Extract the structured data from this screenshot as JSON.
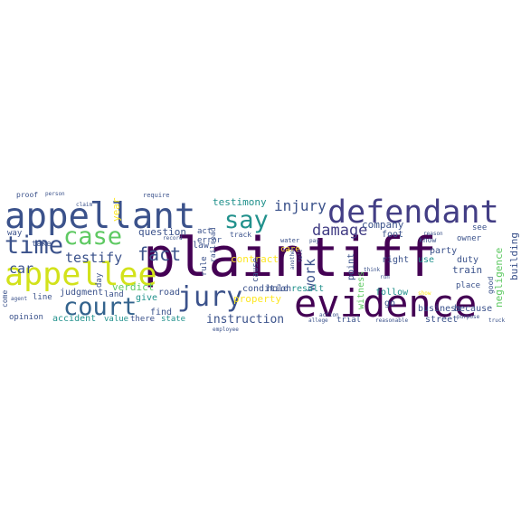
{
  "words": [
    {
      "text": "plaintiff",
      "color": "#440154"
    },
    {
      "text": "evidence",
      "color": "#440154"
    },
    {
      "text": "appellant",
      "color": "#3b528b"
    },
    {
      "text": "defendant",
      "color": "#433e85"
    },
    {
      "text": "appellee",
      "color": "#d2e21b"
    },
    {
      "text": "court",
      "color": "#33638d"
    },
    {
      "text": "jury",
      "color": "#3b528b"
    },
    {
      "text": "case",
      "color": "#5ec962"
    },
    {
      "text": "time",
      "color": "#3b528b"
    },
    {
      "text": "say",
      "color": "#21918c"
    },
    {
      "text": "injury",
      "color": "#3b528b"
    },
    {
      "text": "damage",
      "color": "#433e85"
    },
    {
      "text": "fact",
      "color": "#3b528b"
    },
    {
      "text": "testify",
      "color": "#3b528b"
    },
    {
      "text": "instruction",
      "color": "#3b528b"
    },
    {
      "text": "testimony",
      "color": "#21918c"
    },
    {
      "text": "question",
      "color": "#3b528b"
    },
    {
      "text": "car",
      "color": "#3b528b"
    },
    {
      "text": "work",
      "color": "#3b528b"
    },
    {
      "text": "company",
      "color": "#3b528b"
    },
    {
      "text": "negligence",
      "color": "#5ec962"
    },
    {
      "text": "building",
      "color": "#3b528b"
    },
    {
      "text": "contract",
      "color": "#fde725"
    },
    {
      "text": "property",
      "color": "#fde725"
    },
    {
      "text": "business",
      "color": "#3b528b"
    },
    {
      "text": "because",
      "color": "#3b528b"
    },
    {
      "text": "street",
      "color": "#3b528b"
    },
    {
      "text": "trial",
      "color": "#3b528b"
    },
    {
      "text": "accident",
      "color": "#21918c"
    },
    {
      "text": "judgment",
      "color": "#3b528b"
    },
    {
      "text": "opinion",
      "color": "#3b528b"
    },
    {
      "text": "verdict",
      "color": "#5ec962"
    },
    {
      "text": "condition",
      "color": "#3b528b"
    },
    {
      "text": "result",
      "color": "#21918c"
    },
    {
      "text": "witness",
      "color": "#5ec962"
    },
    {
      "text": "point",
      "color": "#3b528b"
    },
    {
      "text": "hold",
      "color": "#3b528b"
    },
    {
      "text": "cause",
      "color": "#3b528b"
    },
    {
      "text": "rule",
      "color": "#3b528b"
    },
    {
      "text": "law",
      "color": "#3b528b"
    },
    {
      "text": "follow",
      "color": "#21918c"
    },
    {
      "text": "right",
      "color": "#3b528b"
    },
    {
      "text": "use",
      "color": "#21918c"
    },
    {
      "text": "party",
      "color": "#3b528b"
    },
    {
      "text": "duty",
      "color": "#3b528b"
    },
    {
      "text": "train",
      "color": "#3b528b"
    },
    {
      "text": "foot",
      "color": "#3b528b"
    },
    {
      "text": "owner",
      "color": "#3b528b"
    },
    {
      "text": "place",
      "color": "#3b528b"
    },
    {
      "text": "see",
      "color": "#3b528b"
    },
    {
      "text": "good",
      "color": "#3b528b"
    },
    {
      "text": "know",
      "color": "#3b528b"
    },
    {
      "text": "go",
      "color": "#3b528b"
    },
    {
      "text": "act",
      "color": "#3b528b"
    },
    {
      "text": "error",
      "color": "#3b528b"
    },
    {
      "text": "track",
      "color": "#3b528b"
    },
    {
      "text": "railroad",
      "color": "#3b528b"
    },
    {
      "text": "find",
      "color": "#3b528b"
    },
    {
      "text": "give",
      "color": "#21918c"
    },
    {
      "text": "road",
      "color": "#3b528b"
    },
    {
      "text": "land",
      "color": "#3b528b"
    },
    {
      "text": "day",
      "color": "#3b528b"
    },
    {
      "text": "year",
      "color": "#fde725"
    },
    {
      "text": "value",
      "color": "#21918c"
    },
    {
      "text": "there",
      "color": "#3b528b"
    },
    {
      "text": "state",
      "color": "#21918c"
    },
    {
      "text": "take",
      "color": "#3b528b"
    },
    {
      "text": "way",
      "color": "#3b528b"
    },
    {
      "text": "line",
      "color": "#3b528b"
    },
    {
      "text": "come",
      "color": "#3b528b"
    },
    {
      "text": "agent",
      "color": "#3b528b"
    },
    {
      "text": "proof",
      "color": "#3b528b"
    },
    {
      "text": "person",
      "color": "#3b528b"
    },
    {
      "text": "require",
      "color": "#3b528b"
    },
    {
      "text": "record",
      "color": "#3b528b"
    },
    {
      "text": "water",
      "color": "#3b528b"
    },
    {
      "text": "pay",
      "color": "#3b528b"
    },
    {
      "text": "care",
      "color": "#fde725"
    },
    {
      "text": "another",
      "color": "#3b528b"
    },
    {
      "text": "tell",
      "color": "#3b528b"
    },
    {
      "text": "action",
      "color": "#3b528b"
    },
    {
      "text": "think",
      "color": "#3b528b"
    },
    {
      "text": "show",
      "color": "#fde725"
    },
    {
      "text": "reason",
      "color": "#3b528b"
    },
    {
      "text": "run",
      "color": "#3b528b"
    },
    {
      "text": "allege",
      "color": "#3b528b"
    },
    {
      "text": "reasonable",
      "color": "#3b528b"
    },
    {
      "text": "purpose",
      "color": "#3b528b"
    },
    {
      "text": "truck",
      "color": "#3b528b"
    },
    {
      "text": "employee",
      "color": "#3b528b"
    },
    {
      "text": "claim",
      "color": "#3b528b"
    }
  ]
}
